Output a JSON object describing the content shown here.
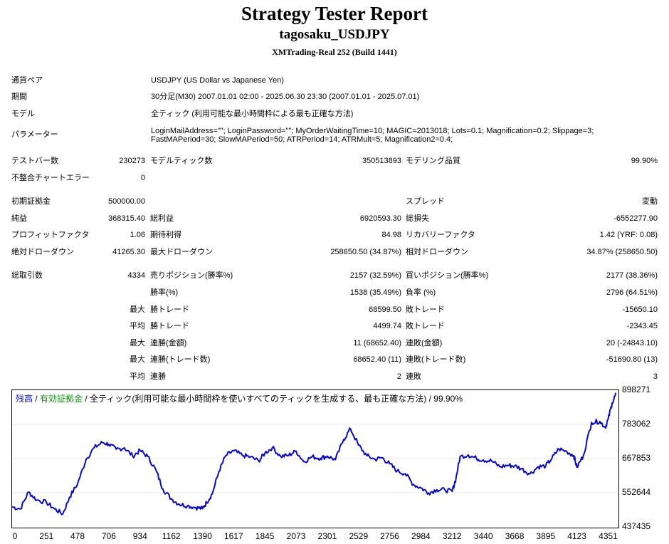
{
  "report": {
    "title": "Strategy Tester Report",
    "ea_name": "tagosaku_USDJPY",
    "server": "XMTrading-Real 252 (Build 1441)"
  },
  "settings": [
    {
      "label": "通貨ペア",
      "value": "USDJPY (US Dollar vs Japanese Yen)"
    },
    {
      "label": "期間",
      "value": "30分足(M30) 2007.01.01 02:00 - 2025.06.30 23:30 (2007.01.01 - 2025.07.01)"
    },
    {
      "label": "モデル",
      "value": "全ティック (利用可能な最小時間枠による最も正確な方法)"
    },
    {
      "label": "パラメーター",
      "value": "LoginMailAddress=\"\"; LoginPassword=\"\"; MyOrderWaitingTime=10; MAGIC=2013018; Lots=0.1; Magnification=0.2; Slippage=3; FastMAPeriod=30; SlowMAPeriod=50; ATRPeriod=14; ATRMult=5; Magnification2=0.4;"
    }
  ],
  "stats": {
    "bars_label": "テストバー数",
    "bars": "230273",
    "ticks_label": "モデルティック数",
    "ticks": "350513893",
    "quality_label": "モデリング品質",
    "quality": "99.90%",
    "mismatch_label": "不整合チャートエラー",
    "mismatch": "0",
    "deposit_label": "初期証拠金",
    "deposit": "500000.00",
    "spread_label": "スプレッド",
    "spread": "変動",
    "net_label": "純益",
    "net": "368315.40",
    "gross_profit_label": "総利益",
    "gross_profit": "6920593.30",
    "gross_loss_label": "総損失",
    "gross_loss": "-6552277.90",
    "pf_label": "プロフィットファクタ",
    "pf": "1.06",
    "expected_label": "期待利得",
    "expected": "84.98",
    "recovery_label": "リカバリーファクタ",
    "recovery": "1.42 (YRF: 0.08)",
    "abs_dd_label": "絶対ドローダウン",
    "abs_dd": "41265.30",
    "max_dd_label": "最大ドローダウン",
    "max_dd": "258650.50 (34.87%)",
    "rel_dd_label": "相対ドローダウン",
    "rel_dd": "34.87% (258650.50)",
    "trades_label": "総取引数",
    "trades": "4334",
    "short_label": "売りポジション(勝率%)",
    "short": "2157 (32.59%)",
    "long_label": "買いポジション(勝率%)",
    "long": "2177 (38.36%)",
    "win_rate_label": "勝率(%)",
    "win_rate": "1538 (35.49%)",
    "loss_rate_label": "負率 (%)",
    "loss_rate": "2796 (64.51%)",
    "max_word": "最大",
    "avg_word": "平均",
    "win_trade_label": "勝トレード",
    "loss_trade_label": "敗トレード",
    "largest_win": "68599.50",
    "largest_loss": "-15650.10",
    "avg_win": "4499.74",
    "avg_loss": "-2343.45",
    "consec_win_amount_label": "連勝(金額)",
    "consec_win_amount": "11 (68652.40)",
    "consec_loss_amount_label": "連敗(金額)",
    "consec_loss_amount": "20 (-24843.10)",
    "consec_win_trades_label": "連勝(トレード数)",
    "consec_win_trades": "68652.40 (11)",
    "consec_loss_trades_label": "連敗(トレード数)",
    "consec_loss_trades": "-51690.80 (13)",
    "avg_consec_win_label": "連勝",
    "avg_consec_win": "2",
    "avg_consec_loss_label": "連敗",
    "avg_consec_loss": "3"
  },
  "chart_title": {
    "balance": "残高",
    "sep1": " / ",
    "equity": "有効証拠金",
    "rest": " / 全ティック(利用可能な最小時間枠を使いすべてのティックを生成する、最も正確な方法) / 99.90%"
  },
  "chart_data": {
    "type": "line",
    "title": "",
    "xlabel": "",
    "ylabel": "",
    "x_ticks": [
      "0",
      "251",
      "478",
      "706",
      "934",
      "1162",
      "1390",
      "1617",
      "1845",
      "2073",
      "2301",
      "2529",
      "2756",
      "2984",
      "3212",
      "3440",
      "3668",
      "3895",
      "4123",
      "4351"
    ],
    "y_ticks": [
      "898271",
      "783062",
      "667853",
      "552644",
      "437435"
    ],
    "xlim": [
      0,
      4421
    ],
    "ylim": [
      437435,
      898271
    ],
    "grid": true,
    "colors": {
      "balance": "#0b0bb4",
      "equity": "#1a8c1a"
    },
    "series": [
      {
        "name": "残高",
        "x": [
          0,
          60,
          120,
          180,
          251,
          310,
          370,
          420,
          478,
          540,
          600,
          660,
          706,
          760,
          820,
          880,
          934,
          990,
          1050,
          1100,
          1162,
          1220,
          1280,
          1340,
          1390,
          1420,
          1460,
          1510,
          1560,
          1617,
          1680,
          1740,
          1800,
          1845,
          1900,
          1960,
          2020,
          2073,
          2130,
          2190,
          2250,
          2301,
          2360,
          2420,
          2470,
          2529,
          2590,
          2650,
          2700,
          2756,
          2810,
          2870,
          2930,
          2984,
          3040,
          3100,
          3160,
          3212,
          3240,
          3270,
          3330,
          3390,
          3440,
          3500,
          3560,
          3620,
          3668,
          3720,
          3780,
          3840,
          3895,
          3940,
          3990,
          4050,
          4100,
          4123,
          4170,
          4230,
          4290,
          4330,
          4351,
          4380,
          4410
        ],
        "values": [
          505000,
          498000,
          555000,
          528000,
          520000,
          498000,
          481000,
          538000,
          583000,
          665000,
          705000,
          722000,
          716000,
          699000,
          704000,
          676000,
          695000,
          675000,
          629000,
          566000,
          532000,
          514000,
          509000,
          503000,
          499000,
          520000,
          548000,
          625000,
          678000,
          694000,
          679000,
          673000,
          660000,
          686000,
          705000,
          675000,
          679000,
          693000,
          657000,
          674000,
          669000,
          676000,
          664000,
          732000,
          768000,
          713000,
          677000,
          665000,
          671000,
          650000,
          626000,
          617000,
          580000,
          569000,
          552000,
          563000,
          562000,
          557000,
          601000,
          674000,
          680000,
          668000,
          663000,
          660000,
          640000,
          645000,
          643000,
          633000,
          616000,
          640000,
          643000,
          668000,
          701000,
          691000,
          678000,
          638000,
          678000,
          790000,
          793000,
          773000,
          800000,
          855000,
          888000
        ]
      }
    ]
  }
}
